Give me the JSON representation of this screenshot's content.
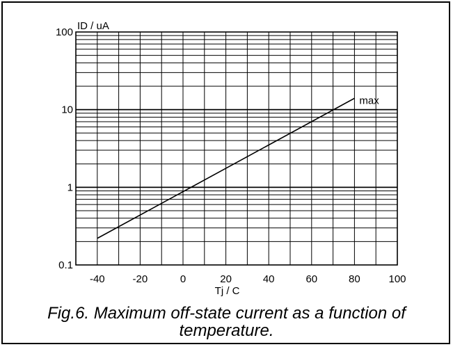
{
  "caption": {
    "line1": "Fig.6.   Maximum off-state current as a function of",
    "line2": "temperature."
  },
  "chart_data": {
    "type": "line",
    "title": "",
    "xlabel": "Tj / C",
    "ylabel": "ID / uA",
    "xlim": [
      -50,
      100
    ],
    "ylim": [
      0.1,
      100
    ],
    "yscale": "log",
    "grid": true,
    "x_ticks": [
      -40,
      -20,
      0,
      20,
      40,
      60,
      80,
      100
    ],
    "x_tick_labels": [
      "-40",
      "-20",
      "0",
      "20",
      "40",
      "60",
      "80",
      "100"
    ],
    "y_ticks": [
      0.1,
      1,
      10,
      100
    ],
    "y_tick_labels": [
      "0.1",
      "1",
      "10",
      "100"
    ],
    "series": [
      {
        "name": "max",
        "x": [
          -40,
          80
        ],
        "y": [
          0.22,
          14
        ]
      }
    ],
    "colors": {
      "line": "#000000",
      "grid": "#000000"
    }
  }
}
